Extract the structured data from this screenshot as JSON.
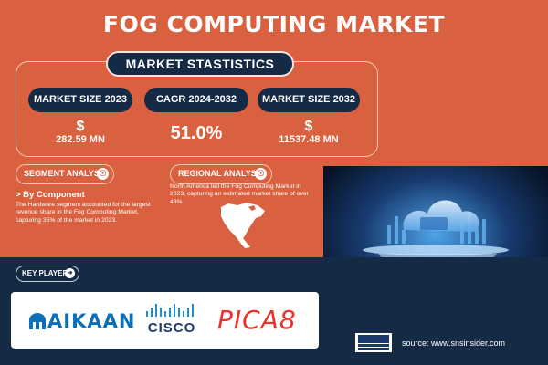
{
  "title": "FOG COMPUTING MARKET",
  "stats_heading": "MARKET STASTISTICS",
  "metrics": [
    {
      "label": "MARKET SIZE 2023",
      "currency": "$",
      "value": "282.59 MN"
    },
    {
      "label": "CAGR 2024-2032",
      "value": "51.0%"
    },
    {
      "label": "MARKET SIZE 2032",
      "currency": "$",
      "value": "11537.48 MN"
    }
  ],
  "segment": {
    "heading": "SEGMENT ANALYSIS",
    "icon": "globe-icon",
    "subheading": "> By Component",
    "text": "The Hardware segment accounted for the largest revenue share in the Fog Computing Market, capturing 35% of the market in 2023."
  },
  "regional": {
    "heading": "REGIONAL ANALYSIS",
    "icon": "globe-icon",
    "text": "North America led the Fog Computing Market in 2023, capturing an estimated market share of over 43%"
  },
  "key_players": {
    "heading": "KEY PLAYERS",
    "icon": "arrow-icon",
    "logos": [
      "AIKAAN",
      "CISCO",
      "PICA8"
    ]
  },
  "footer": {
    "brand_icon": "sns-insider-logo",
    "source": "source: www.snsinsider.com"
  },
  "colors": {
    "background": "#d9613f",
    "navy": "#152a45",
    "white": "#ffffff"
  }
}
